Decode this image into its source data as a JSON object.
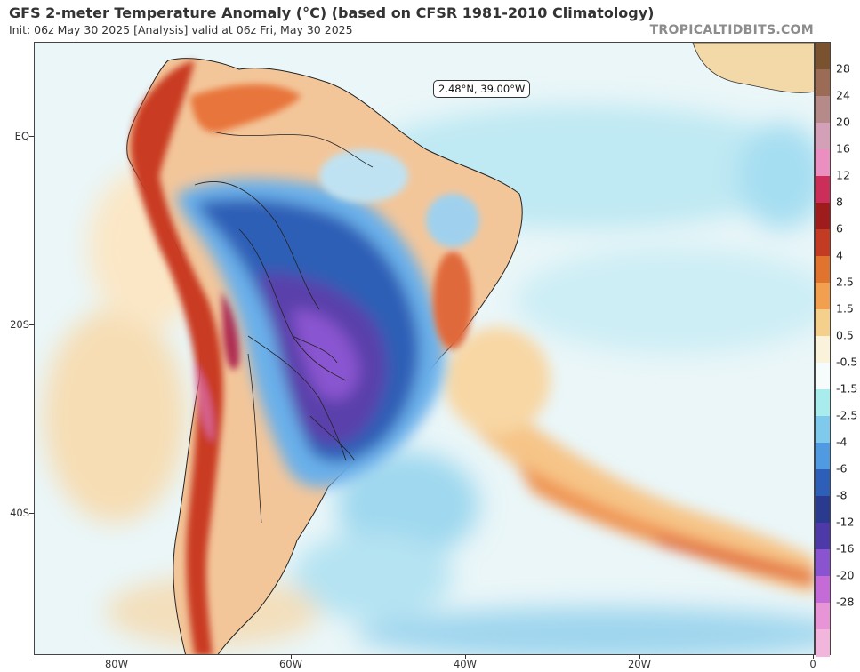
{
  "header": {
    "title": "GFS 2-meter Temperature Anomaly (°C) (based on CFSR 1981-2010 Climatology)",
    "subtitle": "Init: 06z May 30 2025   [Analysis]   valid at 06z Fri, May 30 2025",
    "brand": "TROPICALTIDBITS.COM"
  },
  "map": {
    "coord_readout": "2.48°N, 39.00°W",
    "lat_labels": [
      "EQ",
      "20S",
      "40S"
    ],
    "lon_labels": [
      "80W",
      "60W",
      "40W",
      "20W",
      "0"
    ]
  },
  "colorbar": {
    "labels": [
      "28",
      "24",
      "20",
      "16",
      "12",
      "8",
      "6",
      "4",
      "2.5",
      "1.5",
      "0.5",
      "-0.5",
      "-1.5",
      "-2.5",
      "-4",
      "-6",
      "-8",
      "-12",
      "-16",
      "-20",
      "-28"
    ],
    "colors": [
      "#7a5230",
      "#9c6b55",
      "#b78a8a",
      "#d4a0b8",
      "#ea8fc0",
      "#cc2e5a",
      "#9e1c1c",
      "#c23b22",
      "#e0732e",
      "#f2a050",
      "#f5cf8c",
      "#fbf2dc",
      "#f6fbfb",
      "#a9eced",
      "#7fc9ec",
      "#4f9ae0",
      "#2d5fb8",
      "#2a3a8e",
      "#4d3aa8",
      "#8a54d0",
      "#c46bd8",
      "#e895d8",
      "#f2b6dd"
    ]
  }
}
